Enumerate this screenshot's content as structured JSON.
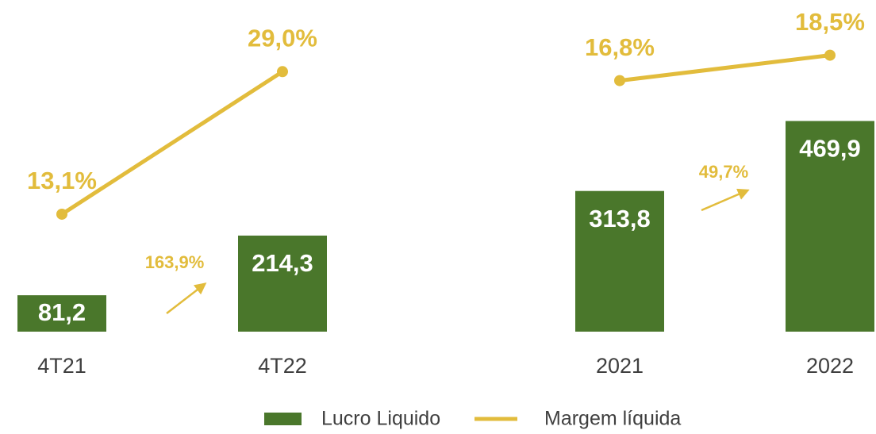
{
  "chart_data": [
    {
      "type": "bar",
      "categories": [
        "4T21",
        "4T22"
      ],
      "series": [
        {
          "name": "Lucro Liquido",
          "color": "#4a772b",
          "values": [
            81.2,
            214.3
          ],
          "value_labels": [
            "81,2",
            "214,3"
          ]
        },
        {
          "name": "Margem líquida",
          "color": "#e2bc3c",
          "type": "line",
          "axis": "y2",
          "values": [
            13.1,
            29.0
          ],
          "value_labels": [
            "13,1%",
            "29,0%"
          ]
        }
      ],
      "ylim": [
        0,
        700
      ],
      "y2lim": [
        0,
        35
      ],
      "annotation": "163,9%"
    },
    {
      "type": "bar",
      "categories": [
        "2021",
        "2022"
      ],
      "series": [
        {
          "name": "Lucro Liquido",
          "color": "#4a772b",
          "values": [
            313.8,
            469.9
          ],
          "value_labels": [
            "313,8",
            "469,9"
          ]
        },
        {
          "name": "Margem líquida",
          "color": "#e2bc3c",
          "type": "line",
          "axis": "y2",
          "values": [
            16.8,
            18.5
          ],
          "value_labels": [
            "16,8%",
            "18,5%"
          ]
        }
      ],
      "ylim": [
        0,
        700
      ],
      "y2lim": [
        0,
        21
      ],
      "annotation": "49,7%"
    }
  ]
}
